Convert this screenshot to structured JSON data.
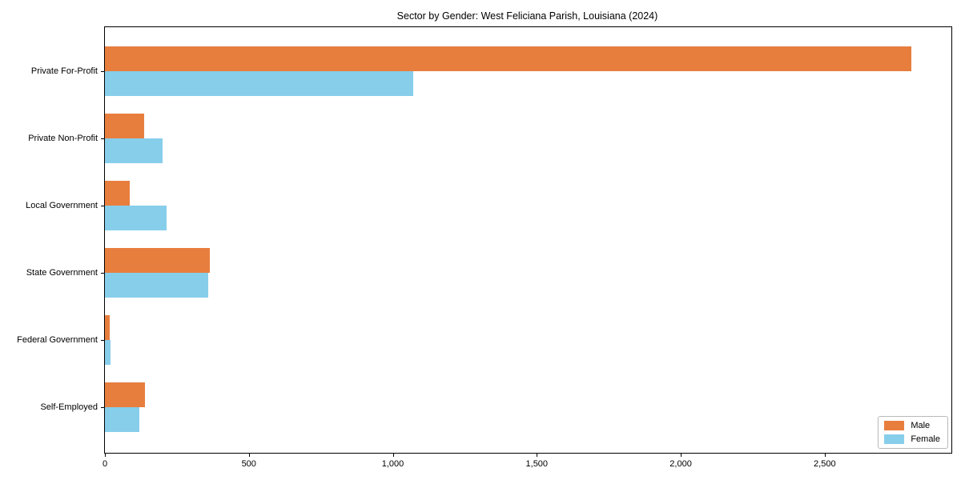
{
  "chart_data": {
    "type": "bar",
    "orientation": "horizontal",
    "title": "Sector by Gender: West Feliciana Parish, Louisiana (2024)",
    "categories": [
      "Private For-Profit",
      "Private Non-Profit",
      "Local Government",
      "State Government",
      "Federal Government",
      "Self-Employed"
    ],
    "series": [
      {
        "name": "Male",
        "color": "#e87e3e",
        "values": [
          2800,
          135,
          85,
          365,
          17,
          140
        ]
      },
      {
        "name": "Female",
        "color": "#87ceeb",
        "values": [
          1070,
          200,
          215,
          360,
          19,
          120
        ]
      }
    ],
    "xticks": [
      0,
      500,
      1000,
      1500,
      2000,
      2500
    ],
    "xlim": [
      0,
      2940
    ],
    "xlabel": "",
    "ylabel": "",
    "grid": false,
    "legend": {
      "position": "lower right",
      "entries": [
        "Male",
        "Female"
      ]
    }
  }
}
